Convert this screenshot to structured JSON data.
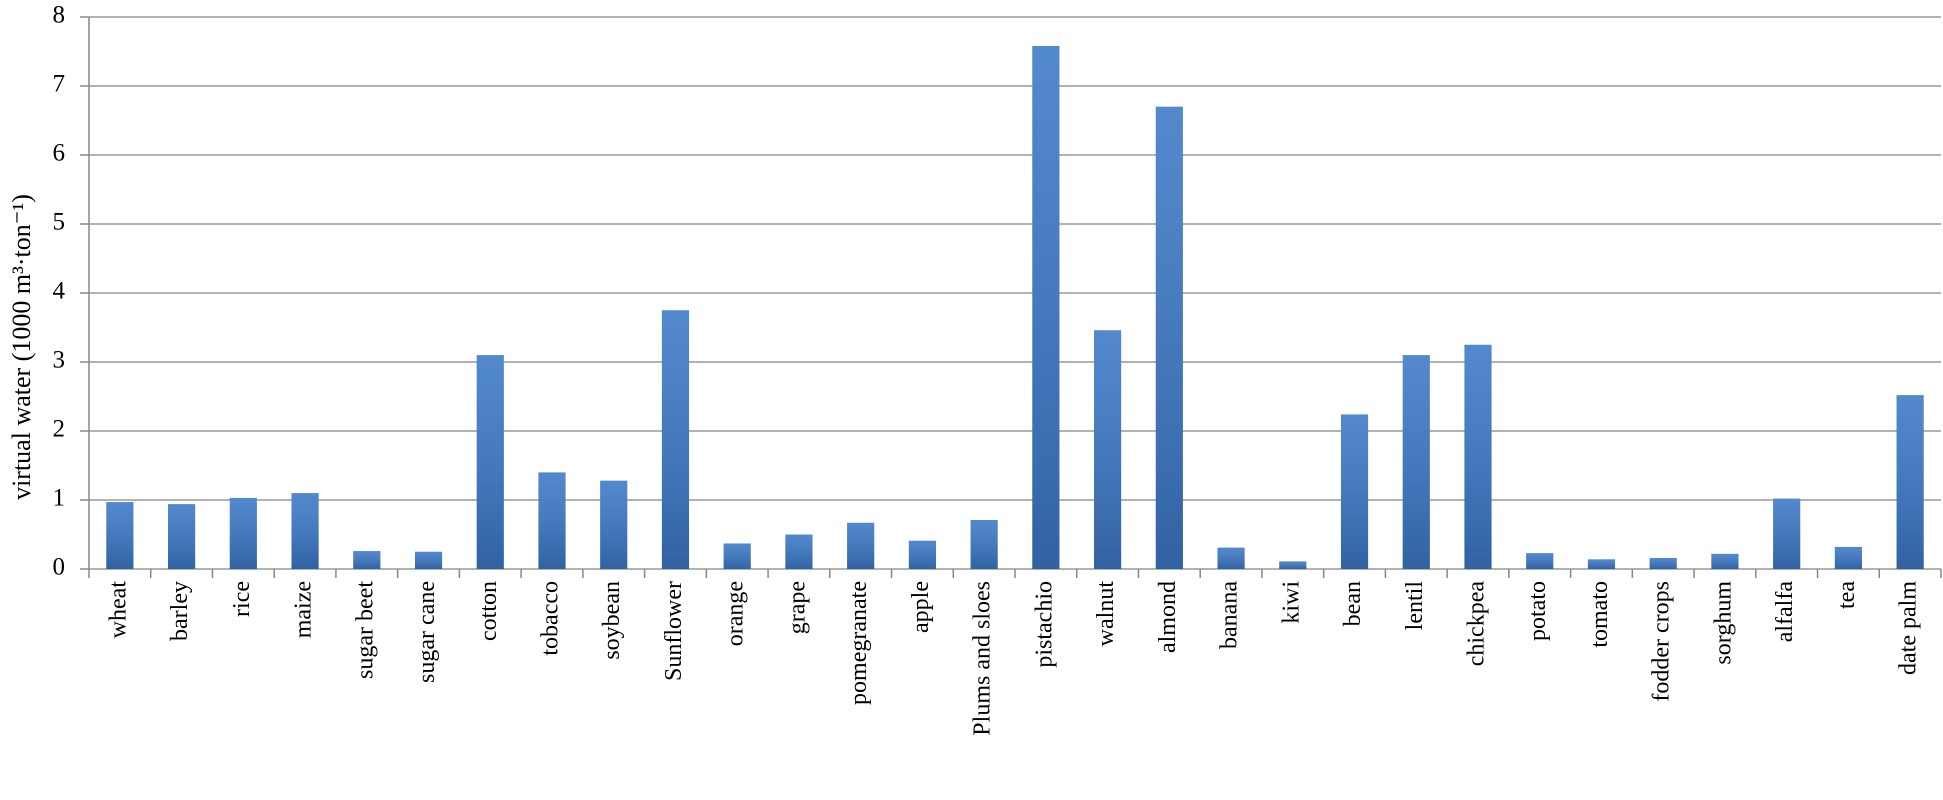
{
  "chart_data": {
    "type": "bar",
    "y_label": "virtual water (1000 m³·ton⁻¹)",
    "categories": [
      "wheat",
      "barley",
      "rice",
      "maize",
      "sugar beet",
      "sugar cane",
      "cotton",
      "tobacco",
      "soybean",
      "Sunflower",
      "orange",
      "grape",
      "pomegranate",
      "apple",
      "Plums and sloes",
      "pistachio",
      "walnut",
      "almond",
      "banana",
      "kiwi",
      "bean",
      "lentil",
      "chickpea",
      "potato",
      "tomato",
      "fodder crops",
      "sorghum",
      "alfalfa",
      "tea",
      "date palm"
    ],
    "values": [
      0.97,
      0.94,
      1.03,
      1.1,
      0.26,
      0.25,
      3.1,
      1.4,
      1.28,
      3.75,
      0.37,
      0.5,
      0.67,
      0.41,
      0.71,
      7.58,
      3.46,
      6.7,
      0.31,
      0.11,
      2.24,
      3.1,
      3.25,
      0.23,
      0.14,
      0.16,
      0.22,
      1.02,
      0.32,
      2.52
    ],
    "color": "#3b78c6",
    "ylim": [
      0,
      8
    ],
    "yticks": [
      0,
      1,
      2,
      3,
      4,
      5,
      6,
      7,
      8
    ],
    "grid": true
  }
}
